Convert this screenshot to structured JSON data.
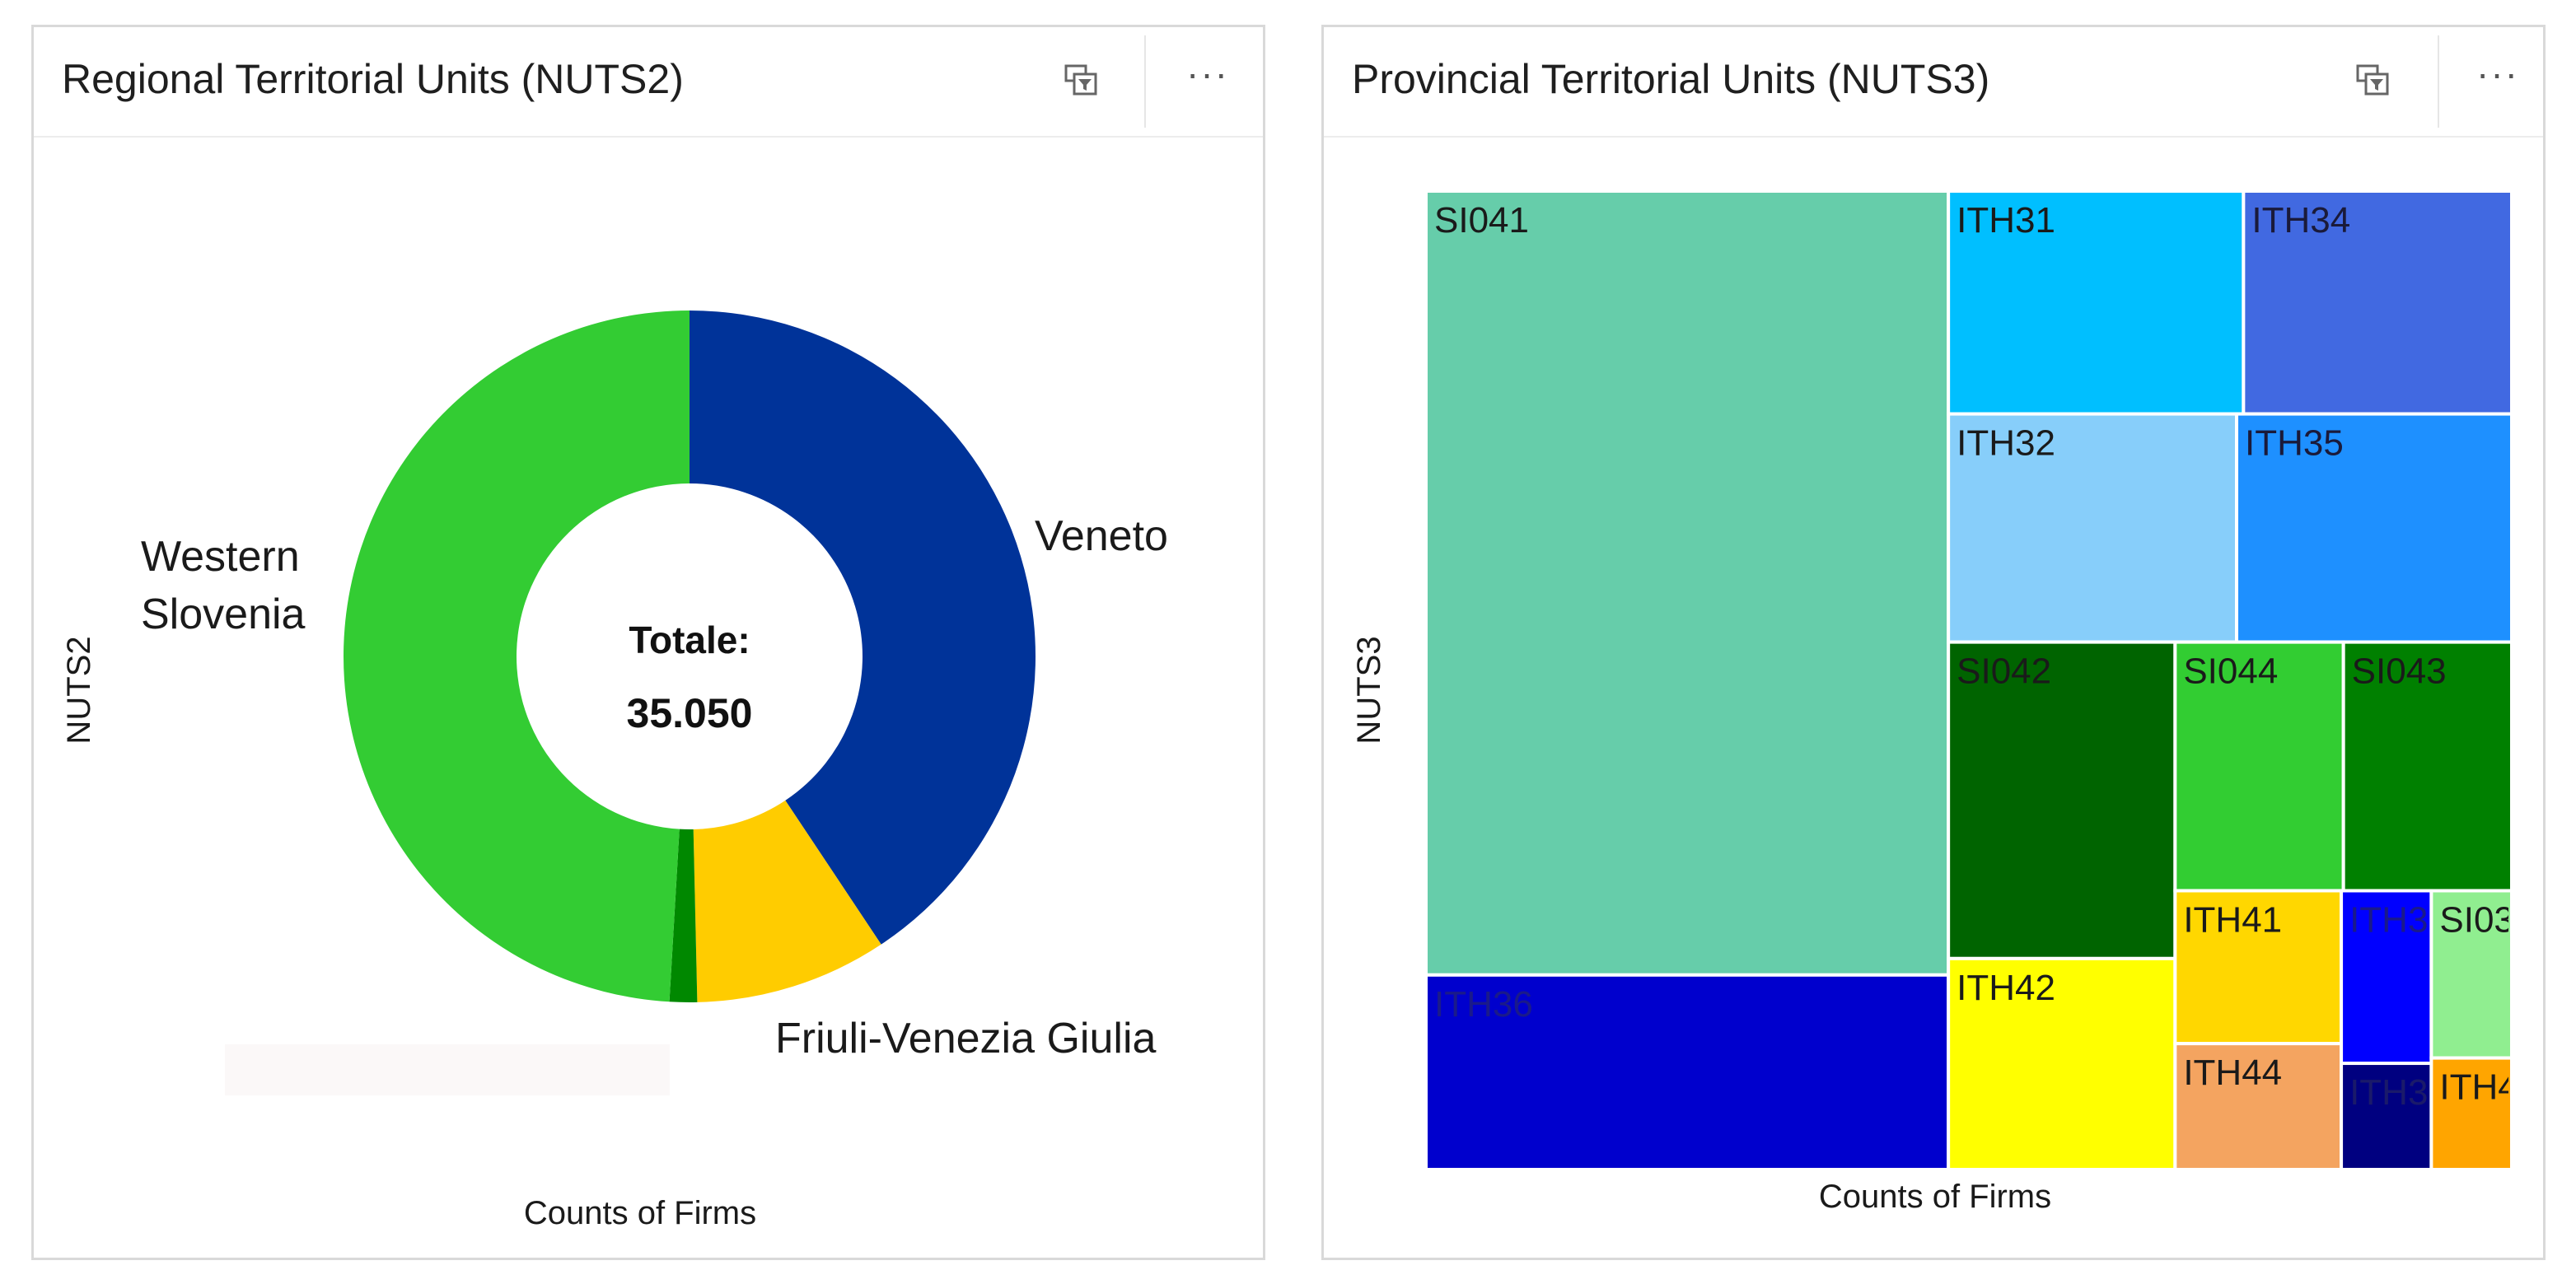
{
  "panels": {
    "left": {
      "title": "Regional Territorial Units (NUTS2)",
      "icon": "filter-icon",
      "menu_icon": "more-options-icon",
      "menu_label": "···"
    },
    "right": {
      "title": "Provincial Territorial Units (NUTS3)",
      "icon": "filter-icon",
      "menu_icon": "more-options-icon",
      "menu_label": "···"
    }
  },
  "chart_data": [
    {
      "type": "pie",
      "variant": "donut",
      "xlabel": "Counts of Firms",
      "ylabel": "NUTS2",
      "center_label": "Totale:",
      "center_value": "35.050",
      "total": 35050,
      "slices": [
        {
          "label": "Veneto",
          "value": 14250,
          "color": "#003399"
        },
        {
          "label": "Friuli-Venezia Giulia",
          "value": 3150,
          "color": "#FFCC00"
        },
        {
          "label": "",
          "value": 450,
          "color": "#008800"
        },
        {
          "label": "Western Slovenia",
          "value": 17200,
          "color": "#33CC33"
        }
      ]
    },
    {
      "type": "treemap",
      "xlabel": "Counts of Firms",
      "ylabel": "NUTS3",
      "tiles": [
        {
          "label": "SI041",
          "value": 13700,
          "color": "#66CDAA"
        },
        {
          "label": "ITH36",
          "value": 3400,
          "color": "#0000CD",
          "text_color": "#1a1a8a"
        },
        {
          "label": "ITH31",
          "value": 2200,
          "color": "#00BFFF"
        },
        {
          "label": "ITH34",
          "value": 2000,
          "color": "#4169E1",
          "text_color": "#1a1a3a"
        },
        {
          "label": "ITH32",
          "value": 2200,
          "color": "#87CEFA"
        },
        {
          "label": "ITH35",
          "value": 2100,
          "color": "#1E90FF",
          "text_color": "#1a1a3a"
        },
        {
          "label": "SI042",
          "value": 2400,
          "color": "#006400"
        },
        {
          "label": "SI044",
          "value": 1400,
          "color": "#32CD32"
        },
        {
          "label": "SI043",
          "value": 1400,
          "color": "#008000"
        },
        {
          "label": "ITH42",
          "value": 1600,
          "color": "#FFFF00"
        },
        {
          "label": "ITH41",
          "value": 850,
          "color": "#FFD700"
        },
        {
          "label": "ITH44",
          "value": 700,
          "color": "#F4A460"
        },
        {
          "label": "ITH3",
          "value": 520,
          "color": "#0000FF",
          "text_color": "#1a1a8a"
        },
        {
          "label": "SI03",
          "value": 450,
          "color": "#90EE90"
        },
        {
          "label": "ITH3",
          "value": 320,
          "color": "#000080",
          "text_color": "#1a1a6a"
        },
        {
          "label": "ITH4",
          "value": 300,
          "color": "#FFA500"
        }
      ]
    }
  ]
}
